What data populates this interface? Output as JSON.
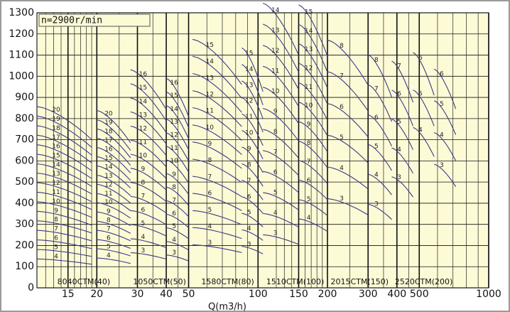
{
  "chart_data": {
    "type": "pump-curves",
    "speed_note": "n=2900r/min",
    "x_label": "Q(m3/h)",
    "x_log": true,
    "xlim": [
      11,
      1000
    ],
    "xticks": [
      15,
      20,
      30,
      40,
      50,
      100,
      150,
      200,
      300,
      400,
      500,
      1000
    ],
    "minor_xticks": [
      12,
      13,
      14,
      16,
      17,
      18,
      19,
      25,
      35,
      45,
      60,
      70,
      80,
      90,
      120,
      130,
      140,
      160,
      170,
      180,
      190,
      250,
      350,
      450,
      600,
      700,
      800,
      900
    ],
    "ylim": [
      0,
      1300
    ],
    "yticks": [
      0,
      100,
      200,
      300,
      400,
      500,
      600,
      700,
      800,
      900,
      1000,
      1100,
      1200,
      1300
    ],
    "grid": true,
    "background": "#fdfbd6",
    "curve_color": "#3d3889",
    "families": [
      {
        "name": "8040CTM(40)",
        "groups": [
          {
            "q": [
              11,
              19
            ],
            "stages": [
              4,
              5,
              6,
              7,
              8,
              9,
              10,
              11,
              12,
              13,
              14,
              15,
              16,
              17,
              18,
              19,
              20
            ],
            "heads": [
              124,
              165,
              206,
              247,
              288,
              329,
              370,
              411,
              452,
              493,
              533,
              574,
              615,
              656,
              697,
              738,
              779
            ]
          },
          {
            "q": [
              20,
              28
            ],
            "stages": [
              4,
              5,
              6,
              7,
              8,
              9,
              10,
              11,
              12,
              13,
              14,
              15,
              16,
              17,
              18,
              19,
              20
            ],
            "heads": [
              128,
              168,
              207,
              247,
              286,
              326,
              366,
              405,
              445,
              484,
              524,
              564,
              603,
              643,
              683,
              722,
              762
            ]
          }
        ]
      },
      {
        "name": "1050CTM(50)",
        "groups": [
          {
            "q": [
              28,
              40
            ],
            "stages": [
              3,
              4,
              5,
              6,
              7,
              8,
              9,
              10,
              11,
              12,
              13,
              14,
              15,
              16
            ],
            "heads": [
              151,
              211,
              272,
              332,
              393,
              453,
              514,
              574,
              635,
              695,
              756,
              816,
              877,
              937
            ]
          },
          {
            "q": [
              40,
              50
            ],
            "stages": [
              3,
              4,
              5,
              6,
              7,
              8,
              9,
              10,
              11,
              12,
              13,
              14,
              15,
              16
            ],
            "heads": [
              141,
              199,
              258,
              316,
              374,
              433,
              491,
              550,
              608,
              666,
              725,
              783,
              842,
              900
            ]
          }
        ]
      },
      {
        "name": "1580CTM(80)",
        "groups": [
          {
            "q": [
              52,
              85
            ],
            "stages": [
              3,
              4,
              5,
              6,
              7,
              8,
              9,
              10,
              11,
              12,
              13,
              14,
              15
            ],
            "heads": [
              185,
              259,
              332,
              406,
              479,
              553,
              627,
              700,
              774,
              847,
              921,
              995,
              1068
            ]
          },
          {
            "q": [
              85,
              105
            ],
            "stages": [
              3,
              4,
              5,
              6,
              7,
              8,
              9,
              10,
              11,
              12,
              13,
              14,
              15
            ],
            "heads": [
              178,
              249,
              320,
              391,
              462,
              533,
              605,
              676,
              747,
              818,
              889,
              960,
              1031
            ]
          }
        ]
      },
      {
        "name": "1510CTM(100)",
        "groups": [
          {
            "q": [
              105,
              150
            ],
            "stages": [
              3,
              4,
              5,
              6,
              7,
              8,
              9,
              10,
              11,
              12,
              13,
              14
            ],
            "heads": [
              228,
              319,
              409,
              500,
              590,
              681,
              771,
              862,
              952,
              1042,
              1133,
              1223
            ]
          },
          {
            "q": [
              150,
              200
            ],
            "stages": [
              4,
              5,
              6,
              7,
              8,
              9,
              10,
              11,
              12,
              13,
              14,
              15
            ],
            "heads": [
              296,
              379,
              463,
              547,
              630,
              714,
              798,
              881,
              965,
              1049,
              1132,
              1216
            ]
          }
        ]
      },
      {
        "name": "2015CTM(150)",
        "groups": [
          {
            "q": [
              200,
              300
            ],
            "stages": [
              3,
              4,
              5,
              6,
              7,
              8
            ],
            "heads": [
              383,
              519,
              656,
              792,
              929,
              1065
            ]
          },
          {
            "q": [
              300,
              380
            ],
            "stages": [
              3,
              4,
              5,
              6,
              7,
              8
            ],
            "heads": [
              359,
              488,
              616,
              744,
              873,
              1001
            ]
          }
        ]
      },
      {
        "name": "2520CTM(200)",
        "groups": [
          {
            "q": [
              380,
              470
            ],
            "stages": [
              3,
              4,
              5,
              6,
              7
            ],
            "heads": [
              477,
              601,
              725,
              850,
              974
            ]
          },
          {
            "q": [
              470,
              580
            ],
            "stages": [
              4,
              5,
              6
            ],
            "heads": [
              689,
              850,
              1011
            ]
          },
          {
            "q": [
              580,
              720
            ],
            "stages": [
              3,
              4,
              5,
              6
            ],
            "heads": [
              531,
              667,
              804,
              940
            ]
          }
        ]
      }
    ]
  }
}
